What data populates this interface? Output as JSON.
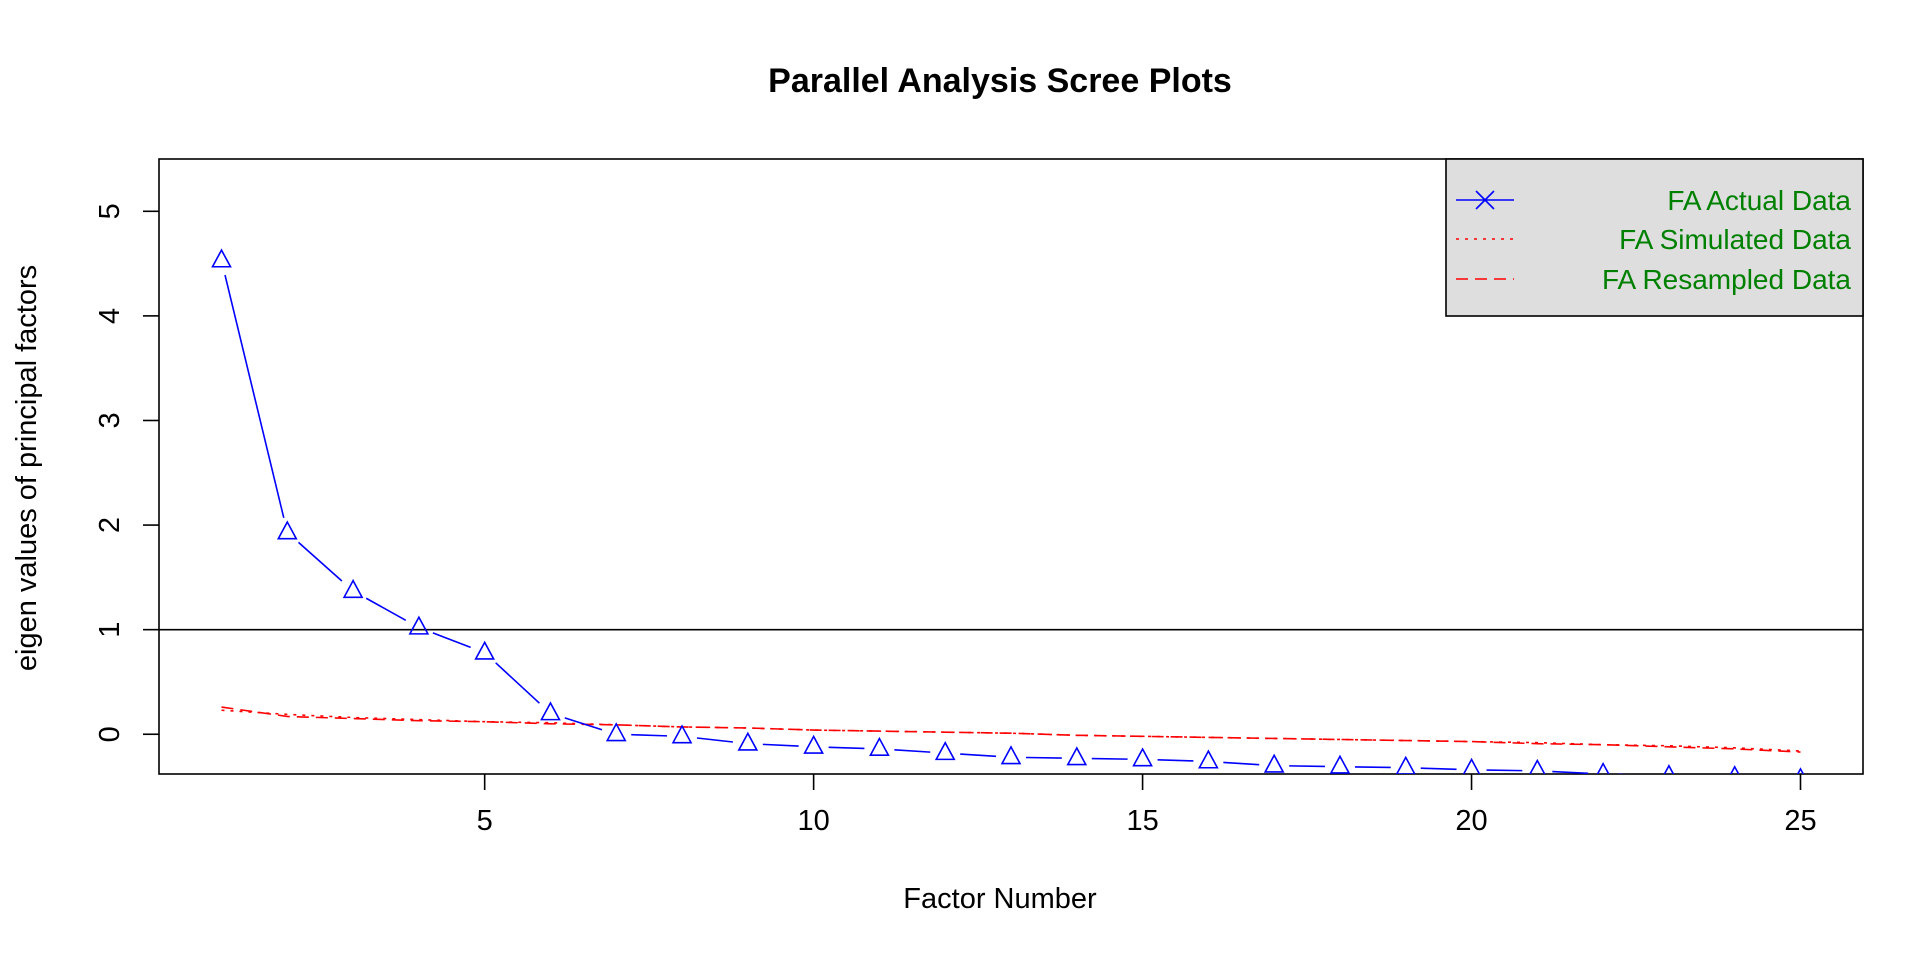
{
  "chart_data": {
    "type": "line",
    "title": "Parallel Analysis Scree Plots",
    "xlabel": "Factor Number",
    "ylabel": "eigen values of principal factors",
    "xlim": [
      0.05,
      25.95
    ],
    "ylim": [
      -0.38,
      5.5
    ],
    "x_ticks": [
      5,
      10,
      15,
      20,
      25
    ],
    "y_ticks": [
      0,
      1,
      2,
      3,
      4,
      5
    ],
    "reference_line": {
      "y": 1
    },
    "grid": false,
    "legend_position": "top-right",
    "colors": {
      "actual": "#0000ff",
      "simulated": "#ff0000",
      "resampled": "#ff0000",
      "legend_text": "#008000",
      "legend_bg": "#dedede"
    },
    "series": [
      {
        "name": "FA  Actual Data",
        "style": "solid",
        "marker": "triangle",
        "x": [
          1,
          2,
          3,
          4,
          5,
          6,
          7,
          8,
          9,
          10,
          11,
          12,
          13,
          14,
          15,
          16,
          17,
          18,
          19,
          20,
          21,
          22,
          23,
          24,
          25
        ],
        "values": [
          4.53,
          1.93,
          1.37,
          1.02,
          0.78,
          0.2,
          0.0,
          -0.02,
          -0.09,
          -0.12,
          -0.14,
          -0.18,
          -0.22,
          -0.23,
          -0.24,
          -0.26,
          -0.3,
          -0.31,
          -0.32,
          -0.34,
          -0.35,
          -0.38,
          -0.4,
          -0.41,
          -0.43
        ]
      },
      {
        "name": "FA  Simulated Data",
        "style": "dotted",
        "marker": "none",
        "x": [
          1,
          2,
          3,
          4,
          5,
          6,
          7,
          8,
          9,
          10,
          11,
          12,
          13,
          14,
          15,
          16,
          17,
          18,
          19,
          20,
          21,
          22,
          23,
          24,
          25
        ],
        "values": [
          0.23,
          0.19,
          0.16,
          0.14,
          0.12,
          0.11,
          0.09,
          0.07,
          0.06,
          0.04,
          0.03,
          0.02,
          0.01,
          -0.01,
          -0.02,
          -0.03,
          -0.04,
          -0.05,
          -0.06,
          -0.07,
          -0.08,
          -0.1,
          -0.11,
          -0.13,
          -0.16
        ]
      },
      {
        "name": "FA  Resampled Data",
        "style": "dashed",
        "marker": "none",
        "x": [
          1,
          2,
          3,
          4,
          5,
          6,
          7,
          8,
          9,
          10,
          11,
          12,
          13,
          14,
          15,
          16,
          17,
          18,
          19,
          20,
          21,
          22,
          23,
          24,
          25
        ],
        "values": [
          0.26,
          0.17,
          0.15,
          0.13,
          0.12,
          0.1,
          0.09,
          0.07,
          0.06,
          0.04,
          0.03,
          0.02,
          0.01,
          -0.01,
          -0.02,
          -0.03,
          -0.04,
          -0.05,
          -0.06,
          -0.07,
          -0.09,
          -0.1,
          -0.12,
          -0.14,
          -0.17
        ]
      }
    ]
  }
}
